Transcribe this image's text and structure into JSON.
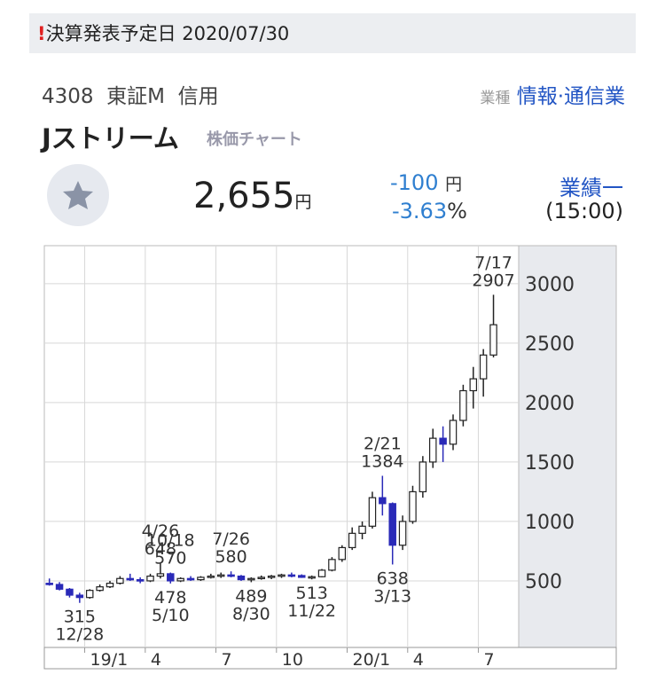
{
  "header": {
    "notice_icon": "!",
    "notice": "決算発表予定日 2020/07/30",
    "code": "4308",
    "market": "東証M",
    "margin": "信用",
    "industry_label": "業種",
    "industry": "情報·通信業",
    "company": "Jストリーム",
    "chart_link": "株価チャート",
    "price": "2,655",
    "price_unit": "円",
    "change": "-100",
    "change_unit": "円",
    "change_pct": "-3.63",
    "pct_unit": "%",
    "results_link": "業績一",
    "time": "(15:00)"
  },
  "chart_data": {
    "type": "candlestick",
    "up_color": "#ffffff",
    "down_color": "#2a2ab8",
    "categories": [
      null,
      null,
      null,
      null,
      "19/1",
      null,
      null,
      null,
      null,
      null,
      "4",
      null,
      null,
      null,
      null,
      null,
      null,
      "7",
      null,
      null,
      null,
      null,
      null,
      "10",
      null,
      null,
      null,
      null,
      null,
      null,
      "20/1",
      null,
      null,
      null,
      null,
      null,
      "4",
      null,
      null,
      null,
      null,
      null,
      null,
      "7",
      null
    ],
    "open": [
      480,
      470,
      430,
      380,
      360,
      420,
      450,
      480,
      520,
      510,
      500,
      540,
      560,
      500,
      520,
      510,
      530,
      540,
      550,
      540,
      510,
      520,
      530,
      540,
      550,
      545,
      530,
      535,
      590,
      680,
      780,
      900,
      960,
      1200,
      1150,
      800,
      1000,
      1250,
      1500,
      1700,
      1650,
      1850,
      2100,
      2200,
      2400
    ],
    "high": [
      520,
      490,
      440,
      400,
      430,
      470,
      500,
      540,
      560,
      530,
      560,
      648,
      570,
      530,
      540,
      540,
      560,
      570,
      580,
      550,
      530,
      545,
      550,
      560,
      570,
      555,
      545,
      600,
      700,
      800,
      950,
      1000,
      1250,
      1384,
      1160,
      1050,
      1300,
      1550,
      1780,
      1800,
      1900,
      2150,
      2300,
      2450,
      2907
    ],
    "low": [
      460,
      420,
      360,
      315,
      350,
      410,
      440,
      470,
      500,
      480,
      490,
      520,
      478,
      490,
      500,
      500,
      520,
      525,
      530,
      500,
      489,
      510,
      515,
      525,
      530,
      525,
      513,
      530,
      580,
      660,
      760,
      850,
      940,
      1050,
      638,
      760,
      980,
      1200,
      1450,
      1500,
      1600,
      1800,
      1950,
      2050,
      2380
    ],
    "close": [
      470,
      430,
      380,
      360,
      420,
      450,
      480,
      520,
      510,
      500,
      540,
      560,
      500,
      520,
      510,
      530,
      540,
      550,
      540,
      510,
      520,
      530,
      540,
      550,
      545,
      530,
      535,
      590,
      680,
      780,
      900,
      960,
      1200,
      1150,
      800,
      1000,
      1250,
      1500,
      1700,
      1650,
      1850,
      2100,
      2200,
      2400,
      2655
    ],
    "ylim": [
      -60,
      3320
    ],
    "yticks": [
      500,
      1000,
      1500,
      2000,
      2500,
      3000
    ],
    "grid": true,
    "annotations": [
      {
        "date": "12/28",
        "value": 315
      },
      {
        "date": "4/26",
        "value": 648
      },
      {
        "date": "5/10",
        "value": 478
      },
      {
        "date": "7/26",
        "value": 580
      },
      {
        "date": "8/30",
        "value": 489
      },
      {
        "date": "10/18",
        "value": 570
      },
      {
        "date": "11/22",
        "value": 513
      },
      {
        "date": "2/21",
        "value": 1384
      },
      {
        "date": "3/13",
        "value": 638
      },
      {
        "date": "7/17",
        "value": 2907
      }
    ]
  }
}
